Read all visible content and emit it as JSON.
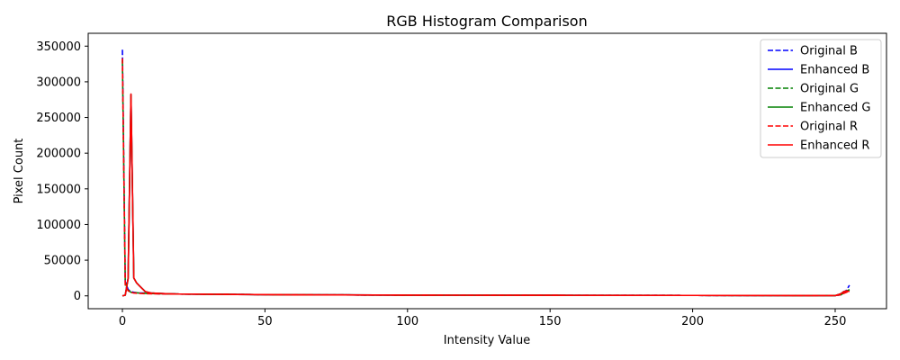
{
  "chart_data": {
    "type": "line",
    "title": "RGB Histogram Comparison",
    "xlabel": "Intensity Value",
    "ylabel": "Pixel Count",
    "xlim": [
      -12,
      268
    ],
    "ylim": [
      -18000,
      368000
    ],
    "xticks": [
      0,
      50,
      100,
      150,
      200,
      250
    ],
    "yticks": [
      0,
      50000,
      100000,
      150000,
      200000,
      250000,
      300000,
      350000
    ],
    "grid": false,
    "legend_position": "top-right",
    "series": [
      {
        "name": "Original B",
        "color": "#0000ff",
        "dash": "dashed",
        "points": [
          [
            0,
            345000
          ],
          [
            1,
            20000
          ],
          [
            2,
            9000
          ],
          [
            3,
            6000
          ],
          [
            4,
            5000
          ],
          [
            6,
            4000
          ],
          [
            8,
            4000
          ],
          [
            12,
            3000
          ],
          [
            20,
            2500
          ],
          [
            40,
            2000
          ],
          [
            60,
            1500
          ],
          [
            100,
            1000
          ],
          [
            150,
            800
          ],
          [
            200,
            600
          ],
          [
            240,
            400
          ],
          [
            250,
            500
          ],
          [
            252,
            1500
          ],
          [
            253,
            5000
          ],
          [
            254,
            8000
          ],
          [
            255,
            15000
          ]
        ]
      },
      {
        "name": "Enhanced B",
        "color": "#0000ff",
        "dash": "solid",
        "points": [
          [
            0,
            0
          ],
          [
            1,
            1000
          ],
          [
            2,
            25000
          ],
          [
            3,
            282000
          ],
          [
            4,
            25000
          ],
          [
            5,
            18000
          ],
          [
            6,
            14000
          ],
          [
            7,
            10000
          ],
          [
            8,
            6000
          ],
          [
            10,
            4000
          ],
          [
            15,
            3000
          ],
          [
            20,
            2500
          ],
          [
            40,
            2000
          ],
          [
            60,
            1500
          ],
          [
            100,
            1000
          ],
          [
            150,
            800
          ],
          [
            200,
            600
          ],
          [
            240,
            400
          ],
          [
            250,
            300
          ],
          [
            252,
            3000
          ],
          [
            253,
            6000
          ],
          [
            254,
            7000
          ],
          [
            255,
            8000
          ]
        ]
      },
      {
        "name": "Original G",
        "color": "#008000",
        "dash": "dashed",
        "points": [
          [
            0,
            330000
          ],
          [
            1,
            18000
          ],
          [
            2,
            8000
          ],
          [
            3,
            5000
          ],
          [
            4,
            4500
          ],
          [
            6,
            4000
          ],
          [
            8,
            3500
          ],
          [
            12,
            3000
          ],
          [
            20,
            2500
          ],
          [
            40,
            2000
          ],
          [
            60,
            1500
          ],
          [
            100,
            1000
          ],
          [
            150,
            800
          ],
          [
            200,
            600
          ],
          [
            240,
            400
          ],
          [
            250,
            500
          ],
          [
            252,
            1500
          ],
          [
            253,
            4000
          ],
          [
            254,
            6000
          ],
          [
            255,
            9000
          ]
        ]
      },
      {
        "name": "Enhanced G",
        "color": "#008000",
        "dash": "solid",
        "points": [
          [
            0,
            0
          ],
          [
            1,
            1000
          ],
          [
            2,
            24000
          ],
          [
            3,
            282000
          ],
          [
            4,
            25000
          ],
          [
            5,
            18000
          ],
          [
            6,
            14000
          ],
          [
            7,
            10000
          ],
          [
            8,
            6000
          ],
          [
            10,
            4000
          ],
          [
            15,
            3000
          ],
          [
            20,
            2500
          ],
          [
            40,
            2000
          ],
          [
            60,
            1500
          ],
          [
            100,
            1000
          ],
          [
            150,
            800
          ],
          [
            200,
            600
          ],
          [
            240,
            400
          ],
          [
            250,
            300
          ],
          [
            252,
            3000
          ],
          [
            253,
            6000
          ],
          [
            254,
            7000
          ],
          [
            255,
            8000
          ]
        ]
      },
      {
        "name": "Original R",
        "color": "#ff0000",
        "dash": "dashed",
        "points": [
          [
            0,
            333000
          ],
          [
            1,
            15000
          ],
          [
            2,
            7000
          ],
          [
            3,
            5000
          ],
          [
            4,
            4000
          ],
          [
            6,
            3500
          ],
          [
            8,
            3000
          ],
          [
            12,
            2800
          ],
          [
            20,
            2500
          ],
          [
            40,
            2000
          ],
          [
            60,
            1500
          ],
          [
            100,
            1000
          ],
          [
            150,
            800
          ],
          [
            200,
            600
          ],
          [
            240,
            400
          ],
          [
            250,
            500
          ],
          [
            252,
            1500
          ],
          [
            253,
            3500
          ],
          [
            254,
            5000
          ],
          [
            255,
            7000
          ]
        ]
      },
      {
        "name": "Enhanced R",
        "color": "#ff0000",
        "dash": "solid",
        "points": [
          [
            0,
            0
          ],
          [
            1,
            1000
          ],
          [
            2,
            24000
          ],
          [
            3,
            283000
          ],
          [
            4,
            25000
          ],
          [
            5,
            18000
          ],
          [
            6,
            14000
          ],
          [
            7,
            10000
          ],
          [
            8,
            6000
          ],
          [
            10,
            4000
          ],
          [
            15,
            3000
          ],
          [
            20,
            2500
          ],
          [
            40,
            2000
          ],
          [
            60,
            1500
          ],
          [
            100,
            1000
          ],
          [
            150,
            800
          ],
          [
            200,
            600
          ],
          [
            240,
            400
          ],
          [
            250,
            300
          ],
          [
            252,
            3000
          ],
          [
            253,
            6000
          ],
          [
            254,
            7000
          ],
          [
            255,
            6000
          ]
        ]
      }
    ]
  }
}
